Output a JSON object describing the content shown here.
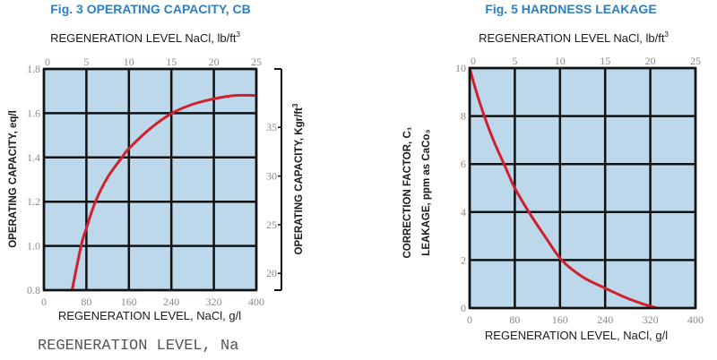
{
  "colors": {
    "title": "#2f7fc0",
    "plot_bg": "#bcd8ea",
    "grid": "#111111",
    "curve": "#d01f2f",
    "tick_text": "#8a8a8a"
  },
  "caption": "REGENERATION LEVEL, Na",
  "chart_data": [
    {
      "type": "line",
      "title": "Fig. 3 OPERATING CAPACITY, CB",
      "top_axis_label": "REGENERATION LEVEL  NaCl, lb/ft",
      "top_axis_label_sup": "3",
      "xlabel": "REGENERATION LEVEL, NaCl, g/l",
      "ylabel": "OPERATING CAPACITY, eq/l",
      "y2label": "OPERATING CAPACITY, Kgr/ft",
      "y2label_sup": "3",
      "xlim": [
        0,
        400
      ],
      "ylim": [
        0.8,
        1.8
      ],
      "x_ticks": [
        "0",
        "80",
        "160",
        "240",
        "320",
        "400"
      ],
      "x_tick_values": [
        0,
        80,
        160,
        240,
        320,
        400
      ],
      "top_ticks": [
        "0",
        "5",
        "10",
        "15",
        "20",
        "25"
      ],
      "y_ticks": [
        "0.8",
        "1.0",
        "1.2",
        "1.4",
        "1.6",
        "1.8"
      ],
      "y_tick_values": [
        0.8,
        1.0,
        1.2,
        1.4,
        1.6,
        1.8
      ],
      "y2_ticks": [
        "20",
        "25",
        "30",
        "35"
      ],
      "y2_tick_values": [
        0.88,
        1.1,
        1.32,
        1.54
      ],
      "grid": true,
      "series": [
        {
          "name": "operating capacity",
          "x": [
            53,
            70,
            80,
            97,
            120,
            147,
            160,
            200,
            241,
            280,
            320,
            360,
            400
          ],
          "y": [
            0.8,
            1.0,
            1.08,
            1.2,
            1.31,
            1.4,
            1.44,
            1.53,
            1.6,
            1.64,
            1.665,
            1.68,
            1.68
          ]
        }
      ]
    },
    {
      "type": "line",
      "title": "Fig. 5 HARDNESS LEAKAGE",
      "top_axis_label": "REGENERATION LEVEL  NaCl, lb/ft",
      "top_axis_label_sup": "3",
      "xlabel": "REGENERATION LEVEL, NaCl, g/l",
      "ylabel": "CORRECTION FACTOR, C₁",
      "ylabel2": "LEAKAGE, ppm as CaCo₃",
      "xlim": [
        0,
        400
      ],
      "ylim": [
        0,
        10
      ],
      "x_ticks": [
        "0",
        "80",
        "160",
        "240",
        "320",
        "400"
      ],
      "x_tick_values": [
        0,
        80,
        160,
        240,
        320,
        400
      ],
      "top_ticks": [
        "0",
        "5",
        "10",
        "15",
        "20",
        "25"
      ],
      "y_ticks": [
        "0",
        "2",
        "4",
        "6",
        "8",
        "10"
      ],
      "y_tick_values": [
        0,
        2,
        4,
        6,
        8,
        10
      ],
      "grid": true,
      "series": [
        {
          "name": "hardness leakage",
          "x": [
            0,
            12,
            26,
            42,
            61,
            80,
            105,
            133,
            163,
            200,
            240,
            280,
            310,
            332
          ],
          "y": [
            10,
            9.0,
            8.0,
            7.0,
            6.0,
            5.0,
            4.0,
            3.0,
            2.0,
            1.3,
            0.83,
            0.4,
            0.15,
            0
          ]
        }
      ]
    }
  ]
}
